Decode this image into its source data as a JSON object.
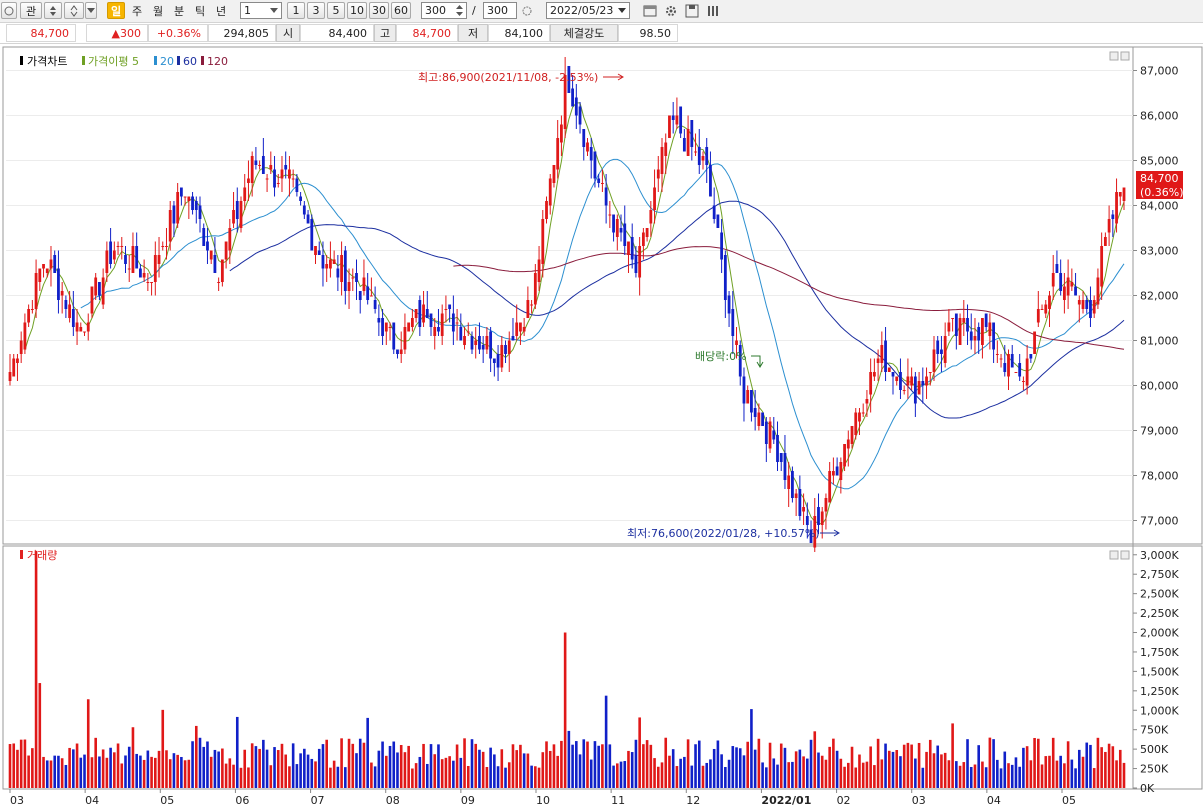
{
  "toolbar": {
    "btn_watch": "관",
    "btn_day": "일",
    "btn_week": "주",
    "btn_month": "월",
    "btn_minute": "분",
    "btn_tick": "틱",
    "btn_year": "년",
    "period_value": "1",
    "period_buttons": [
      "1",
      "3",
      "5",
      "10",
      "30",
      "60"
    ],
    "count_value": "300",
    "count_sep": "/",
    "count_total": "300",
    "date_value": "2022/05/23"
  },
  "info": {
    "price": "84,700",
    "change": "▲300",
    "change_pct": "+0.36%",
    "volume": "294,805",
    "open_label": "시",
    "open": "84,400",
    "high_label": "고",
    "high": "84,700",
    "low_label": "저",
    "low": "84,100",
    "strength_label": "체결강도",
    "strength": "98.50"
  },
  "chart_data": {
    "type": "candlestick",
    "price_panel": {
      "legend": [
        {
          "label": "가격차트",
          "color": "#000000"
        },
        {
          "label": "가격이평 5",
          "color": "#6fa024"
        },
        {
          "label": "20",
          "color": "#2c8fd0"
        },
        {
          "label": "60",
          "color": "#1c2fa0"
        },
        {
          "label": "120",
          "color": "#8a1c3c"
        }
      ],
      "y_ticks": [
        "87,000",
        "86,000",
        "85,000",
        "84,000",
        "83,000",
        "82,000",
        "81,000",
        "80,000",
        "79,000",
        "78,000",
        "77,000"
      ],
      "ylim": [
        76500,
        87500
      ],
      "current_price_label": "84,700",
      "current_change_label": "(0.36%)",
      "annotations": {
        "high": "최고:86,900(2021/11/08, -2.53%)",
        "low": "최저:76,600(2022/01/28, +10.57%)",
        "dividend": "배당락:0%"
      },
      "ohlc_anchors": [
        {
          "date": "2021/03",
          "close": 80300
        },
        {
          "date": "2021/03",
          "close": 82900
        },
        {
          "date": "2021/04",
          "close": 81200
        },
        {
          "date": "2021/04",
          "close": 83100
        },
        {
          "date": "2021/05",
          "close": 82400
        },
        {
          "date": "2021/05",
          "close": 84400
        },
        {
          "date": "2021/06",
          "close": 82600
        },
        {
          "date": "2021/06",
          "close": 85000
        },
        {
          "date": "2021/07",
          "close": 84500
        },
        {
          "date": "2021/07",
          "close": 82800
        },
        {
          "date": "2021/08",
          "close": 82300
        },
        {
          "date": "2021/08",
          "close": 80900
        },
        {
          "date": "2021/09",
          "close": 81700
        },
        {
          "date": "2021/09",
          "close": 81300
        },
        {
          "date": "2021/10",
          "close": 80700
        },
        {
          "date": "2021/10",
          "close": 81900
        },
        {
          "date": "2021/11/08",
          "close": 86900
        },
        {
          "date": "2021/11",
          "close": 84200
        },
        {
          "date": "2021/12",
          "close": 82500
        },
        {
          "date": "2021/12",
          "close": 85900
        },
        {
          "date": "2021/12",
          "close": 84800
        },
        {
          "date": "2021/12",
          "close": 80000
        },
        {
          "date": "2022/01",
          "close": 78700
        },
        {
          "date": "2022/01/28",
          "close": 76600
        },
        {
          "date": "2022/02",
          "close": 78800
        },
        {
          "date": "2022/02",
          "close": 80700
        },
        {
          "date": "2022/03",
          "close": 79900
        },
        {
          "date": "2022/03",
          "close": 81200
        },
        {
          "date": "2022/04",
          "close": 81300
        },
        {
          "date": "2022/04",
          "close": 80000
        },
        {
          "date": "2022/04",
          "close": 82500
        },
        {
          "date": "2022/05",
          "close": 81700
        },
        {
          "date": "2022/05/23",
          "close": 84700
        }
      ]
    },
    "volume_panel": {
      "legend": "거래량",
      "y_ticks": [
        "3,000K",
        "2,750K",
        "2,500K",
        "2,250K",
        "2,000K",
        "1,750K",
        "1,500K",
        "1,250K",
        "1,000K",
        "750K",
        "500K",
        "250K",
        "0K"
      ],
      "ylim": [
        0,
        3100000
      ]
    },
    "x_ticks": [
      "03",
      "04",
      "05",
      "06",
      "07",
      "08",
      "09",
      "10",
      "11",
      "12",
      "2022/01",
      "02",
      "03",
      "04",
      "05"
    ]
  }
}
